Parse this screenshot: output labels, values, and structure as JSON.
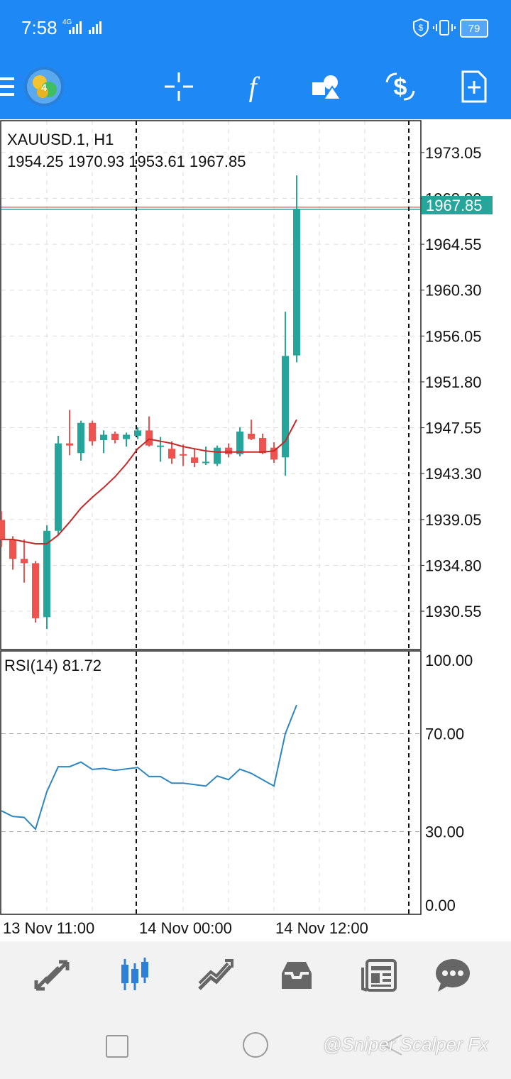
{
  "status_bar": {
    "time": "7:58",
    "network": "4G",
    "battery": "79"
  },
  "toolbar": {
    "icons": [
      "menu-icon",
      "app-logo",
      "crosshair-icon",
      "indicators-icon",
      "objects-icon",
      "trade-icon",
      "new-order-icon"
    ],
    "function_glyph": "f"
  },
  "chart": {
    "symbol_label": "XAUUSD.1, H1",
    "ohlc_label": "1954.25 1970.93 1953.61 1967.85",
    "current_price": "1967.85",
    "price_ticks": [
      "1973.05",
      "1968.80",
      "1964.55",
      "1960.30",
      "1956.05",
      "1951.80",
      "1947.55",
      "1943.30",
      "1939.05",
      "1934.80",
      "1930.55"
    ],
    "rsi_label": "RSI(14) 81.72",
    "rsi_ticks": [
      "100.00",
      "70.00",
      "30.00",
      "0.00"
    ],
    "time_labels": [
      "13 Nov 11:00",
      "14 Nov 00:00",
      "14 Nov 12:00"
    ],
    "colors": {
      "bull": "#26a69a",
      "bear": "#ef5350",
      "ma": "#c62828",
      "rsi": "#2e86c1",
      "price_badge": "#26a69a",
      "accent": "#1e88f5"
    }
  },
  "chart_data": {
    "type": "candlestick",
    "symbol": "XAUUSD.1",
    "timeframe": "H1",
    "ylim": [
      1927.0,
      1976.0
    ],
    "candles": [
      {
        "o": 1939.0,
        "h": 1939.8,
        "l": 1936.5,
        "c": 1937.2
      },
      {
        "o": 1937.2,
        "h": 1937.5,
        "l": 1934.4,
        "c": 1935.4
      },
      {
        "o": 1935.4,
        "h": 1937.2,
        "l": 1933.2,
        "c": 1935.0
      },
      {
        "o": 1935.0,
        "h": 1935.2,
        "l": 1929.5,
        "c": 1929.9
      },
      {
        "o": 1930.0,
        "h": 1938.5,
        "l": 1928.9,
        "c": 1938.0
      },
      {
        "o": 1938.0,
        "h": 1946.8,
        "l": 1937.6,
        "c": 1946.1
      },
      {
        "o": 1946.1,
        "h": 1949.2,
        "l": 1945.0,
        "c": 1945.9
      },
      {
        "o": 1945.2,
        "h": 1948.2,
        "l": 1944.5,
        "c": 1948.0
      },
      {
        "o": 1948.0,
        "h": 1948.2,
        "l": 1945.9,
        "c": 1946.3
      },
      {
        "o": 1946.4,
        "h": 1947.3,
        "l": 1945.2,
        "c": 1946.9
      },
      {
        "o": 1947.0,
        "h": 1947.2,
        "l": 1946.1,
        "c": 1946.4
      },
      {
        "o": 1946.5,
        "h": 1947.1,
        "l": 1945.8,
        "c": 1946.9
      },
      {
        "o": 1946.8,
        "h": 1947.6,
        "l": 1946.5,
        "c": 1947.3
      },
      {
        "o": 1947.3,
        "h": 1948.6,
        "l": 1945.8,
        "c": 1945.9
      },
      {
        "o": 1945.9,
        "h": 1946.7,
        "l": 1944.4,
        "c": 1945.9
      },
      {
        "o": 1945.6,
        "h": 1946.3,
        "l": 1944.2,
        "c": 1944.7
      },
      {
        "o": 1945.1,
        "h": 1946.0,
        "l": 1944.0,
        "c": 1945.0
      },
      {
        "o": 1944.8,
        "h": 1945.6,
        "l": 1943.9,
        "c": 1944.3
      },
      {
        "o": 1944.4,
        "h": 1945.8,
        "l": 1944.1,
        "c": 1944.4
      },
      {
        "o": 1944.2,
        "h": 1945.9,
        "l": 1944.0,
        "c": 1945.7
      },
      {
        "o": 1945.7,
        "h": 1946.1,
        "l": 1944.8,
        "c": 1945.1
      },
      {
        "o": 1945.1,
        "h": 1947.6,
        "l": 1944.9,
        "c": 1947.2
      },
      {
        "o": 1947.0,
        "h": 1948.3,
        "l": 1946.4,
        "c": 1946.5
      },
      {
        "o": 1946.6,
        "h": 1947.0,
        "l": 1945.1,
        "c": 1945.2
      },
      {
        "o": 1945.7,
        "h": 1946.2,
        "l": 1944.3,
        "c": 1944.6
      },
      {
        "o": 1944.8,
        "h": 1958.3,
        "l": 1943.1,
        "c": 1954.2
      },
      {
        "o": 1954.25,
        "h": 1970.93,
        "l": 1953.61,
        "c": 1967.85
      }
    ],
    "ma": [
      1937.2,
      1937.2,
      1937.0,
      1936.8,
      1936.8,
      1937.6,
      1938.8,
      1940.1,
      1941.1,
      1942.0,
      1943.0,
      1944.2,
      1945.6,
      1946.5,
      1946.3,
      1946.1,
      1945.8,
      1945.6,
      1945.4,
      1945.3,
      1945.3,
      1945.3,
      1945.3,
      1945.3,
      1945.4,
      1946.3,
      1948.3
    ],
    "rsi": [
      38.5,
      36.2,
      35.8,
      31.0,
      46.3,
      56.5,
      56.5,
      58.4,
      55.4,
      55.8,
      55.0,
      55.6,
      56.2,
      52.5,
      52.5,
      49.8,
      49.8,
      49.2,
      48.6,
      52.7,
      51.2,
      55.5,
      53.8,
      51.2,
      48.6,
      70.0,
      81.72
    ],
    "rsi_levels": [
      70,
      30
    ],
    "rsi_range": [
      0,
      100
    ]
  },
  "bottom_nav": {
    "items": [
      "quotes-icon",
      "chart-icon",
      "trade-icon",
      "history-icon",
      "news-icon",
      "messages-icon"
    ],
    "active": "chart-icon"
  },
  "system_nav": {
    "watermark": "@Sniper Scalper Fx"
  }
}
